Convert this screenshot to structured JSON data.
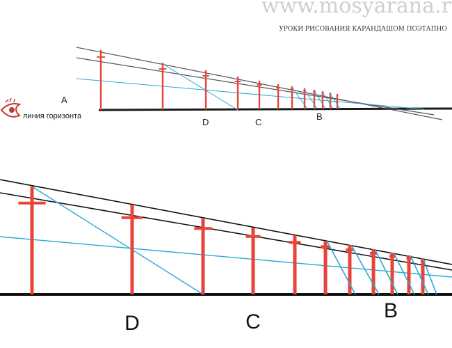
{
  "watermark": {
    "site": "www.mosyarana.ru",
    "tagline": "УРОКИ РИСОВАНИЯ КАРАНДАШОМ ПОЭТАПНО"
  },
  "top_diagram": {
    "horizon_label": "линия горизонта",
    "labels": {
      "a": "A",
      "b": "B",
      "c": "C",
      "d": "D"
    },
    "icon": "eye-icon"
  },
  "bottom_diagram": {
    "labels": {
      "b": "B",
      "c": "C",
      "d": "D"
    }
  },
  "colors": {
    "post": "#e8443a",
    "guide": "#29a9d6",
    "line": "#1a1a1a",
    "watermark": "#cfcfcf"
  }
}
